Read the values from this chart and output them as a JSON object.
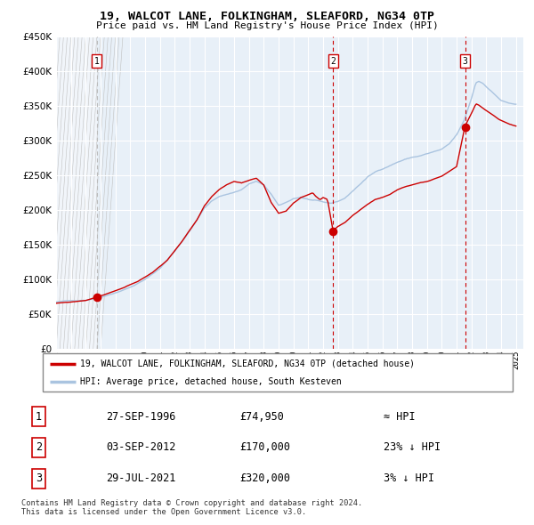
{
  "title": "19, WALCOT LANE, FOLKINGHAM, SLEAFORD, NG34 0TP",
  "subtitle": "Price paid vs. HM Land Registry's House Price Index (HPI)",
  "sale_dates_num": [
    1996.74,
    2012.67,
    2021.57
  ],
  "sale_prices": [
    74950,
    170000,
    320000
  ],
  "sale_labels": [
    "1",
    "2",
    "3"
  ],
  "legend_line1": "19, WALCOT LANE, FOLKINGHAM, SLEAFORD, NG34 0TP (detached house)",
  "legend_line2": "HPI: Average price, detached house, South Kesteven",
  "table_rows": [
    [
      "1",
      "27-SEP-1996",
      "£74,950",
      "≈ HPI"
    ],
    [
      "2",
      "03-SEP-2012",
      "£170,000",
      "23% ↓ HPI"
    ],
    [
      "3",
      "29-JUL-2021",
      "£320,000",
      "3% ↓ HPI"
    ]
  ],
  "footer": "Contains HM Land Registry data © Crown copyright and database right 2024.\nThis data is licensed under the Open Government Licence v3.0.",
  "hpi_line_color": "#aac4e0",
  "price_line_color": "#cc0000",
  "sale_dot_color": "#cc0000",
  "vline_color": "#cc0000",
  "bg_color": "#e8f0f8",
  "grid_color": "#ffffff",
  "ylim": [
    0,
    450000
  ],
  "xlim_start": 1994.0,
  "xlim_end": 2025.5,
  "hpi_anchors": [
    [
      1994.0,
      68000
    ],
    [
      1995.0,
      69500
    ],
    [
      1996.0,
      71000
    ],
    [
      1997.0,
      76000
    ],
    [
      1998.0,
      83000
    ],
    [
      1999.0,
      91000
    ],
    [
      2000.0,
      102000
    ],
    [
      2001.0,
      118000
    ],
    [
      2002.0,
      143000
    ],
    [
      2003.0,
      172000
    ],
    [
      2004.0,
      205000
    ],
    [
      2004.5,
      215000
    ],
    [
      2005.0,
      222000
    ],
    [
      2005.5,
      225000
    ],
    [
      2006.0,
      228000
    ],
    [
      2006.5,
      232000
    ],
    [
      2007.0,
      240000
    ],
    [
      2007.5,
      244000
    ],
    [
      2008.0,
      238000
    ],
    [
      2008.5,
      225000
    ],
    [
      2009.0,
      208000
    ],
    [
      2009.5,
      212000
    ],
    [
      2010.0,
      218000
    ],
    [
      2010.5,
      220000
    ],
    [
      2011.0,
      217000
    ],
    [
      2011.5,
      215000
    ],
    [
      2012.0,
      212000
    ],
    [
      2012.5,
      210000
    ],
    [
      2013.0,
      213000
    ],
    [
      2013.5,
      218000
    ],
    [
      2014.0,
      228000
    ],
    [
      2014.5,
      238000
    ],
    [
      2015.0,
      248000
    ],
    [
      2015.5,
      255000
    ],
    [
      2016.0,
      260000
    ],
    [
      2016.5,
      265000
    ],
    [
      2017.0,
      270000
    ],
    [
      2017.5,
      274000
    ],
    [
      2018.0,
      277000
    ],
    [
      2018.5,
      279000
    ],
    [
      2019.0,
      282000
    ],
    [
      2019.5,
      285000
    ],
    [
      2020.0,
      288000
    ],
    [
      2020.5,
      295000
    ],
    [
      2021.0,
      308000
    ],
    [
      2021.5,
      328000
    ],
    [
      2022.0,
      360000
    ],
    [
      2022.3,
      383000
    ],
    [
      2022.5,
      385000
    ],
    [
      2022.8,
      382000
    ],
    [
      2023.0,
      378000
    ],
    [
      2023.3,
      372000
    ],
    [
      2023.5,
      368000
    ],
    [
      2023.8,
      362000
    ],
    [
      2024.0,
      358000
    ],
    [
      2024.5,
      354000
    ],
    [
      2025.0,
      352000
    ]
  ],
  "price_anchors": [
    [
      1994.0,
      66000
    ],
    [
      1995.0,
      67500
    ],
    [
      1996.0,
      70000
    ],
    [
      1996.74,
      74950
    ],
    [
      1997.5,
      80000
    ],
    [
      1998.5,
      88000
    ],
    [
      1999.5,
      97000
    ],
    [
      2000.5,
      110000
    ],
    [
      2001.5,
      128000
    ],
    [
      2002.5,
      155000
    ],
    [
      2003.5,
      185000
    ],
    [
      2004.0,
      205000
    ],
    [
      2004.5,
      218000
    ],
    [
      2005.0,
      228000
    ],
    [
      2005.5,
      235000
    ],
    [
      2006.0,
      240000
    ],
    [
      2006.5,
      238000
    ],
    [
      2007.0,
      242000
    ],
    [
      2007.5,
      245000
    ],
    [
      2008.0,
      235000
    ],
    [
      2008.5,
      210000
    ],
    [
      2009.0,
      195000
    ],
    [
      2009.5,
      198000
    ],
    [
      2010.0,
      210000
    ],
    [
      2010.5,
      218000
    ],
    [
      2011.0,
      222000
    ],
    [
      2011.3,
      225000
    ],
    [
      2011.5,
      220000
    ],
    [
      2011.8,
      215000
    ],
    [
      2012.0,
      218000
    ],
    [
      2012.3,
      215000
    ],
    [
      2012.67,
      170000
    ],
    [
      2013.0,
      176000
    ],
    [
      2013.5,
      182000
    ],
    [
      2014.0,
      192000
    ],
    [
      2014.5,
      200000
    ],
    [
      2015.0,
      208000
    ],
    [
      2015.5,
      215000
    ],
    [
      2016.0,
      218000
    ],
    [
      2016.5,
      222000
    ],
    [
      2017.0,
      228000
    ],
    [
      2017.5,
      232000
    ],
    [
      2018.0,
      235000
    ],
    [
      2018.5,
      238000
    ],
    [
      2019.0,
      240000
    ],
    [
      2019.5,
      244000
    ],
    [
      2020.0,
      248000
    ],
    [
      2020.5,
      255000
    ],
    [
      2021.0,
      262000
    ],
    [
      2021.57,
      320000
    ],
    [
      2022.0,
      338000
    ],
    [
      2022.3,
      352000
    ],
    [
      2022.5,
      350000
    ],
    [
      2022.8,
      345000
    ],
    [
      2023.0,
      342000
    ],
    [
      2023.3,
      338000
    ],
    [
      2023.5,
      335000
    ],
    [
      2023.8,
      330000
    ],
    [
      2024.0,
      328000
    ],
    [
      2024.5,
      323000
    ],
    [
      2025.0,
      320000
    ]
  ]
}
